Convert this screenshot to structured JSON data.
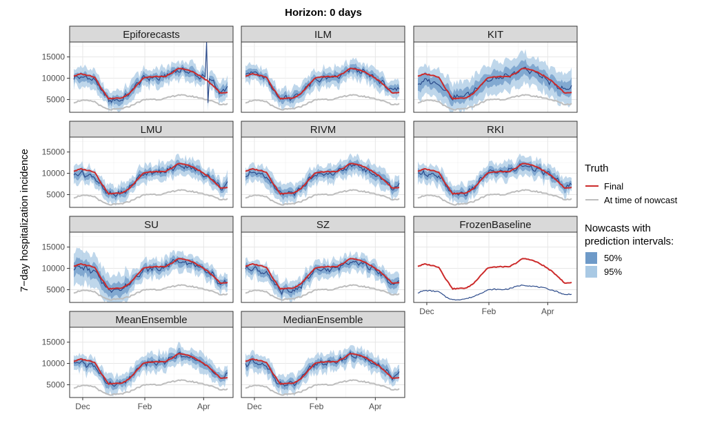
{
  "chart_data": {
    "type": "line",
    "title": "Horizon: 0 days",
    "ylabel": "7−day hospitalization incidence",
    "xlabel": "",
    "ylim": [
      2000,
      18500
    ],
    "yticks": [
      5000,
      10000,
      15000
    ],
    "xticks": [
      "Dec",
      "Feb",
      "Apr"
    ],
    "grid": true,
    "legend_position": "right",
    "legend": {
      "truth_title": "Truth",
      "truth_items": [
        {
          "label": "Final",
          "color": "#cc2a2a"
        },
        {
          "label": "At time of nowcast",
          "color": "#bdbdbd"
        }
      ],
      "pi_title_line1": "Nowcasts with",
      "pi_title_line2": "prediction intervals:",
      "pi_items": [
        {
          "label": "50%",
          "color": "#6e9ac8"
        },
        {
          "label": "95%",
          "color": "#a9c9e4"
        }
      ]
    },
    "colors": {
      "final": "#cc2a2a",
      "at_time": "#bdbdbd",
      "nowcast": "#2b4a8a",
      "pi50": "#6e9ac8",
      "pi95": "#a9c9e4"
    },
    "dates": [
      "Nov 22",
      "Nov 29",
      "Dec 6",
      "Dec 13",
      "Dec 20",
      "Dec 27",
      "Jan 3",
      "Jan 10",
      "Jan 17",
      "Jan 24",
      "Jan 31",
      "Feb 7",
      "Feb 14",
      "Feb 21",
      "Feb 28",
      "Mar 7",
      "Mar 14",
      "Mar 21",
      "Mar 28",
      "Apr 4",
      "Apr 11",
      "Apr 18",
      "Apr 25"
    ],
    "truth_final": [
      10500,
      11000,
      10700,
      10300,
      7500,
      5200,
      5300,
      5400,
      6500,
      8400,
      10100,
      10300,
      10400,
      10300,
      11200,
      12300,
      12100,
      11500,
      10600,
      9500,
      8200,
      6500,
      6700
    ],
    "truth_at_time": [
      4300,
      4800,
      4700,
      4500,
      3300,
      2600,
      2700,
      2900,
      3400,
      4200,
      4900,
      5100,
      5000,
      5200,
      5700,
      6100,
      5900,
      5700,
      5400,
      5000,
      4500,
      3800,
      4000
    ],
    "panels": [
      {
        "name": "Epiforecasts",
        "median": [
          10000,
          10300,
          10100,
          9600,
          7000,
          4900,
          4800,
          5100,
          6500,
          8600,
          10000,
          10200,
          9900,
          10400,
          11400,
          11900,
          11700,
          11300,
          10300,
          10100,
          9200,
          6200,
          8000
        ],
        "spike": 18500
      },
      {
        "name": "ILM",
        "median": [
          11100,
          11500,
          10700,
          9800,
          7100,
          5200,
          5500,
          5500,
          6700,
          8400,
          9500,
          9900,
          10100,
          10200,
          10800,
          12200,
          11900,
          11300,
          10500,
          9600,
          8300,
          6800,
          8000
        ]
      },
      {
        "name": "KIT",
        "median": [
          8500,
          9500,
          9200,
          8600,
          7200,
          5400,
          5700,
          6100,
          7000,
          8700,
          9400,
          9900,
          10200,
          10500,
          11100,
          12300,
          11800,
          11200,
          10100,
          9000,
          8200,
          7200,
          8200
        ]
      },
      {
        "name": "LMU",
        "median": [
          9800,
          10100,
          9500,
          9200,
          6700,
          5000,
          5100,
          5300,
          6600,
          8600,
          10100,
          10200,
          10100,
          10400,
          11000,
          11900,
          11600,
          11300,
          10200,
          9500,
          8500,
          6500,
          7400
        ]
      },
      {
        "name": "RIVM",
        "median": [
          9800,
          10200,
          9600,
          9200,
          6900,
          5200,
          5200,
          5300,
          6500,
          8400,
          9500,
          9900,
          10000,
          10200,
          10800,
          11900,
          11700,
          11000,
          10100,
          9300,
          8300,
          6400,
          7300
        ]
      },
      {
        "name": "RKI",
        "median": [
          9900,
          10100,
          9500,
          9200,
          7100,
          5100,
          5200,
          5300,
          6500,
          8500,
          10200,
          10400,
          10300,
          10700,
          11100,
          11900,
          11600,
          11000,
          10300,
          9500,
          8400,
          6400,
          7400
        ]
      },
      {
        "name": "SU",
        "median": [
          10000,
          10400,
          9700,
          9200,
          7000,
          4800,
          5200,
          5100,
          6500,
          8300,
          9500,
          10000,
          9800,
          10300,
          11400,
          11900,
          11500,
          11000,
          10100,
          9400,
          8400,
          6000,
          7300
        ]
      },
      {
        "name": "SZ",
        "median": [
          9800,
          10200,
          9400,
          8900,
          6600,
          4600,
          4700,
          4800,
          6000,
          8000,
          9400,
          9700,
          9700,
          10000,
          10800,
          11800,
          11500,
          11000,
          10000,
          9100,
          8000,
          6000,
          7100
        ]
      },
      {
        "name": "FrozenBaseline",
        "median": [
          4300,
          4800,
          4700,
          4500,
          3300,
          2600,
          2700,
          2900,
          3400,
          4200,
          4900,
          5100,
          5000,
          5200,
          5700,
          6100,
          5900,
          5700,
          5400,
          5000,
          4500,
          3800,
          4000
        ],
        "no_bands": true
      },
      {
        "name": "MeanEnsemble",
        "median": [
          9900,
          10300,
          9700,
          9300,
          7000,
          5000,
          5100,
          5200,
          6500,
          8500,
          9900,
          10200,
          10100,
          10400,
          11100,
          12000,
          11700,
          11200,
          10300,
          9500,
          8500,
          6400,
          7500
        ]
      },
      {
        "name": "MedianEnsemble",
        "median": [
          9900,
          10300,
          9700,
          9300,
          7000,
          5000,
          5100,
          5200,
          6500,
          8500,
          9900,
          10200,
          10100,
          10400,
          11100,
          12000,
          11700,
          11200,
          10300,
          9500,
          8500,
          6400,
          7500
        ]
      }
    ]
  }
}
